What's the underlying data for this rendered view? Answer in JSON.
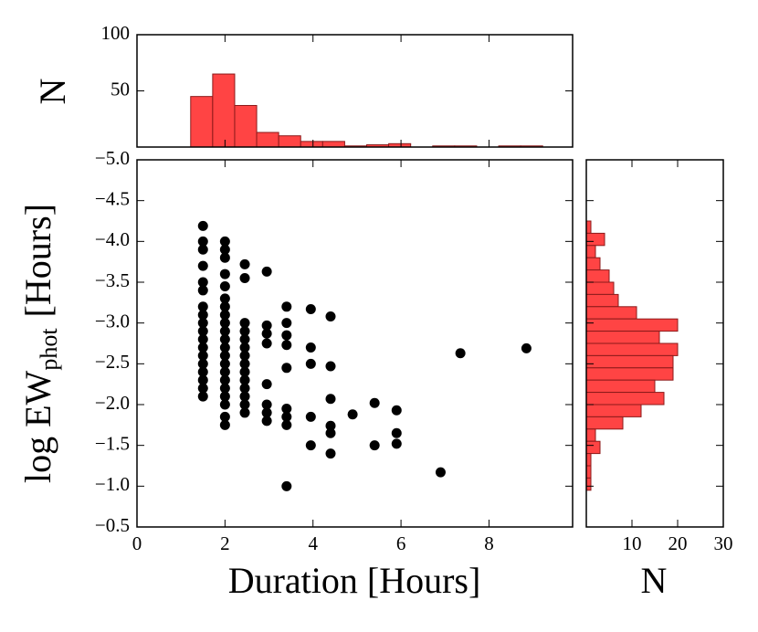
{
  "chart_data": [
    {
      "type": "scatter",
      "xlabel": "Duration [Hours]",
      "ylabel": "log EW",
      "ylabel_sub": "phot",
      "ylabel_unit": "[Hours]",
      "color": "#000000",
      "x": [
        1.5,
        1.5,
        1.5,
        1.5,
        1.5,
        1.5,
        1.5,
        1.5,
        1.5,
        1.5,
        1.5,
        1.5,
        1.5,
        1.5,
        1.5,
        1.5,
        1.5,
        1.5,
        2.0,
        2.0,
        2.0,
        2.0,
        2.0,
        2.0,
        2.0,
        2.0,
        2.0,
        2.0,
        2.0,
        2.0,
        2.0,
        2.0,
        2.0,
        2.0,
        2.0,
        2.0,
        2.0,
        2.0,
        2.0,
        2.45,
        2.45,
        2.45,
        2.45,
        2.45,
        2.45,
        2.45,
        2.45,
        2.45,
        2.45,
        2.45,
        2.45,
        2.45,
        2.45,
        2.95,
        2.95,
        2.95,
        2.95,
        2.95,
        2.95,
        2.95,
        2.95,
        3.4,
        3.4,
        3.4,
        3.4,
        3.4,
        3.4,
        3.4,
        3.4,
        3.4,
        3.95,
        3.95,
        3.95,
        3.95,
        3.95,
        4.4,
        4.4,
        4.4,
        4.4,
        4.4,
        4.4,
        4.9,
        5.4,
        5.4,
        5.9,
        5.9,
        5.9,
        6.9,
        7.35,
        8.85
      ],
      "y": [
        -4.19,
        -4.0,
        -3.9,
        -3.7,
        -3.5,
        -3.4,
        -3.2,
        -3.1,
        -3.0,
        -2.9,
        -2.8,
        -2.7,
        -2.6,
        -2.5,
        -2.4,
        -2.3,
        -2.2,
        -2.1,
        -4.0,
        -3.9,
        -3.8,
        -3.6,
        -3.45,
        -3.3,
        -3.2,
        -3.1,
        -3.0,
        -2.9,
        -2.8,
        -2.7,
        -2.6,
        -2.5,
        -2.4,
        -2.3,
        -2.2,
        -2.1,
        -2.0,
        -1.85,
        -1.75,
        -3.72,
        -3.55,
        -3.0,
        -2.9,
        -2.8,
        -2.7,
        -2.6,
        -2.5,
        -2.4,
        -2.3,
        -2.2,
        -2.1,
        -2.0,
        -1.9,
        -3.63,
        -2.97,
        -2.87,
        -2.75,
        -2.25,
        -2.0,
        -1.9,
        -1.8,
        -3.2,
        -3.0,
        -2.85,
        -2.73,
        -2.45,
        -1.95,
        -1.85,
        -1.75,
        -1.0,
        -3.17,
        -2.7,
        -2.5,
        -1.85,
        -1.5,
        -3.08,
        -2.47,
        -2.07,
        -1.74,
        -1.65,
        -1.4,
        -1.88,
        -2.02,
        -1.5,
        -1.93,
        -1.65,
        -1.52,
        -1.17,
        -2.63,
        -2.69
      ],
      "xlim": [
        0,
        9.9
      ],
      "xticks": [
        0,
        2,
        4,
        6,
        8
      ],
      "ylim": [
        -0.5,
        -5.0
      ],
      "yticks": [
        {
          "value": -5.0,
          "label": "−5.0"
        },
        {
          "value": -4.5,
          "label": "−4.5"
        },
        {
          "value": -4.0,
          "label": "−4.0"
        },
        {
          "value": -3.5,
          "label": "−3.5"
        },
        {
          "value": -3.0,
          "label": "−3.0"
        },
        {
          "value": -2.5,
          "label": "−2.5"
        },
        {
          "value": -2.0,
          "label": "−2.0"
        },
        {
          "value": -1.5,
          "label": "−1.5"
        },
        {
          "value": -1.0,
          "label": "−1.0"
        },
        {
          "value": -0.5,
          "label": "−0.5"
        }
      ]
    },
    {
      "type": "histogram",
      "orientation": "vertical",
      "ylabel": "N",
      "color": "#ff4444",
      "bins": [
        1.22,
        1.72,
        2.22,
        2.72,
        3.22,
        3.72,
        4.22,
        4.72,
        5.22,
        5.72,
        6.22,
        6.72,
        7.22,
        7.72,
        8.22,
        8.72,
        9.22
      ],
      "values": [
        45,
        65,
        37,
        13,
        10,
        5,
        5,
        1,
        2,
        3,
        0,
        1,
        1,
        0,
        1,
        1
      ],
      "xlim": [
        0,
        9.9
      ],
      "ylim": [
        0,
        100
      ],
      "yticks": [
        50,
        100
      ]
    },
    {
      "type": "histogram",
      "orientation": "horizontal",
      "xlabel": "N",
      "color": "#ff4444",
      "bins": [
        -4.25,
        -4.1,
        -3.95,
        -3.8,
        -3.65,
        -3.5,
        -3.35,
        -3.2,
        -3.05,
        -2.9,
        -2.75,
        -2.6,
        -2.45,
        -2.3,
        -2.15,
        -2.0,
        -1.85,
        -1.7,
        -1.55,
        -1.4,
        -1.25,
        -1.1,
        -0.95
      ],
      "values": [
        1,
        4,
        2,
        3,
        5,
        6,
        7,
        11,
        20,
        16,
        20,
        19,
        19,
        15,
        17,
        12,
        8,
        2,
        3,
        1,
        1,
        1
      ],
      "xlim": [
        0,
        30
      ],
      "xticks": [
        10,
        20,
        30
      ],
      "ylim": [
        -0.5,
        -5.0
      ]
    }
  ]
}
